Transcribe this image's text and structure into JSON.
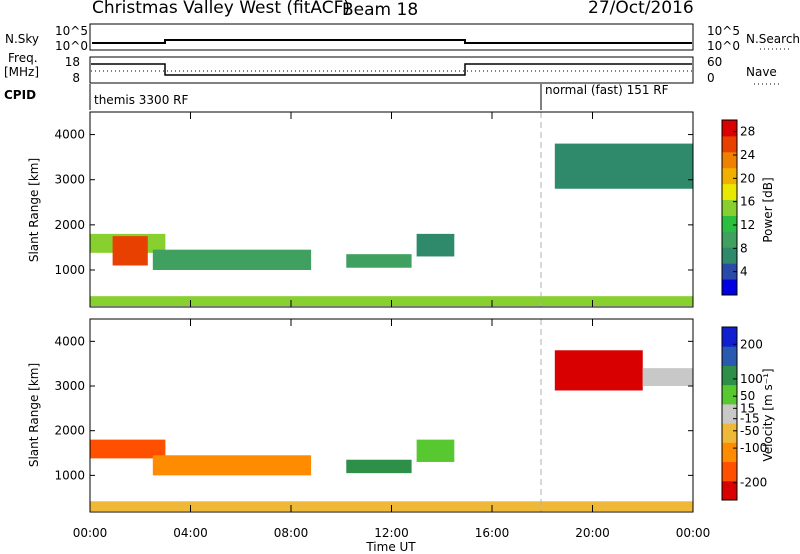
{
  "header": {
    "title": "Christmas Valley West (fitACF)",
    "beam": "Beam 18",
    "date": "27/Oct/2016"
  },
  "top_panels": {
    "nsky_label": "N.Sky",
    "nsky_ticks": [
      "10^5",
      "10^0"
    ],
    "nsearch_label": "N.Search",
    "nsearch_ticks": [
      "10^5",
      "10^0"
    ],
    "freq_label_1": "Freq.",
    "freq_label_2": "[MHz]",
    "freq_ticks": [
      "18",
      "8"
    ],
    "nave_label": "Nave",
    "nave_ticks": [
      "60",
      "0"
    ],
    "cpid_label": "CPID",
    "cpid_segments": [
      {
        "label": "themis 3300 RF",
        "start_hour": 0
      },
      {
        "label": "normal (fast) 151 RF",
        "start_hour": 18
      }
    ]
  },
  "colors": {
    "power": [
      "#0000e0",
      "#2a4aa8",
      "#2e8a6a",
      "#3fa060",
      "#2bbf40",
      "#88d030",
      "#e8e800",
      "#f0b000",
      "#f08000",
      "#e84000",
      "#d80000"
    ],
    "velocity": [
      "#d80000",
      "#ff5000",
      "#ff8c00",
      "#f0b838",
      "#c8c8c8",
      "#58c830",
      "#2e9048",
      "#2a5ab0",
      "#1020d0"
    ]
  },
  "chart_data": [
    {
      "type": "heatmap",
      "panel": "power",
      "ylabel": "Slant Range [km]",
      "yticks": [
        1000,
        2000,
        3000,
        4000
      ],
      "ylim": [
        180,
        4500
      ],
      "xlim": [
        0,
        24
      ],
      "colorbar_label": "Power [dB]",
      "colorbar_ticks": [
        4,
        8,
        12,
        16,
        20,
        24,
        28
      ],
      "colorbar_range": [
        0,
        30
      ],
      "regions": [
        {
          "h0": 0.0,
          "h1": 3.0,
          "r0": 1380,
          "r1": 1800,
          "value": 14
        },
        {
          "h0": 0.9,
          "h1": 2.3,
          "r0": 1100,
          "r1": 1750,
          "value": 26
        },
        {
          "h0": 2.5,
          "h1": 8.8,
          "r0": 1000,
          "r1": 1450,
          "value": 10
        },
        {
          "h0": 10.2,
          "h1": 12.8,
          "r0": 1050,
          "r1": 1350,
          "value": 9
        },
        {
          "h0": 13.0,
          "h1": 14.5,
          "r0": 1300,
          "r1": 1800,
          "value": 8
        },
        {
          "h0": 18.5,
          "h1": 24.0,
          "r0": 2800,
          "r1": 3800,
          "value": 8
        },
        {
          "h0": 0.0,
          "h1": 24.0,
          "r0": 200,
          "r1": 420,
          "value": 16
        }
      ]
    },
    {
      "type": "heatmap",
      "panel": "velocity",
      "ylabel": "Slant Range [km]",
      "xlabel": "Time UT",
      "xticks": [
        "00:00",
        "04:00",
        "08:00",
        "12:00",
        "16:00",
        "20:00",
        "00:00"
      ],
      "yticks": [
        1000,
        2000,
        3000,
        4000
      ],
      "ylim": [
        180,
        4500
      ],
      "xlim": [
        0,
        24
      ],
      "colorbar_label": "Velocity [m s⁻¹]",
      "colorbar_ticks": [
        200,
        100,
        50,
        15,
        -15,
        -50,
        -100,
        -200
      ],
      "colorbar_range": [
        -250,
        250
      ],
      "regions": [
        {
          "h0": 0.0,
          "h1": 3.0,
          "r0": 1380,
          "r1": 1800,
          "value": -160
        },
        {
          "h0": 2.5,
          "h1": 8.8,
          "r0": 1000,
          "r1": 1450,
          "value": -130
        },
        {
          "h0": 10.2,
          "h1": 12.8,
          "r0": 1050,
          "r1": 1350,
          "value": 120
        },
        {
          "h0": 13.0,
          "h1": 14.5,
          "r0": 1300,
          "r1": 1800,
          "value": 40
        },
        {
          "h0": 18.5,
          "h1": 22.0,
          "r0": 2900,
          "r1": 3800,
          "value": -200
        },
        {
          "h0": 22.0,
          "h1": 24.0,
          "r0": 3000,
          "r1": 3400,
          "value": -5
        },
        {
          "h0": 0.0,
          "h1": 24.0,
          "r0": 200,
          "r1": 420,
          "value": -40
        }
      ]
    }
  ]
}
